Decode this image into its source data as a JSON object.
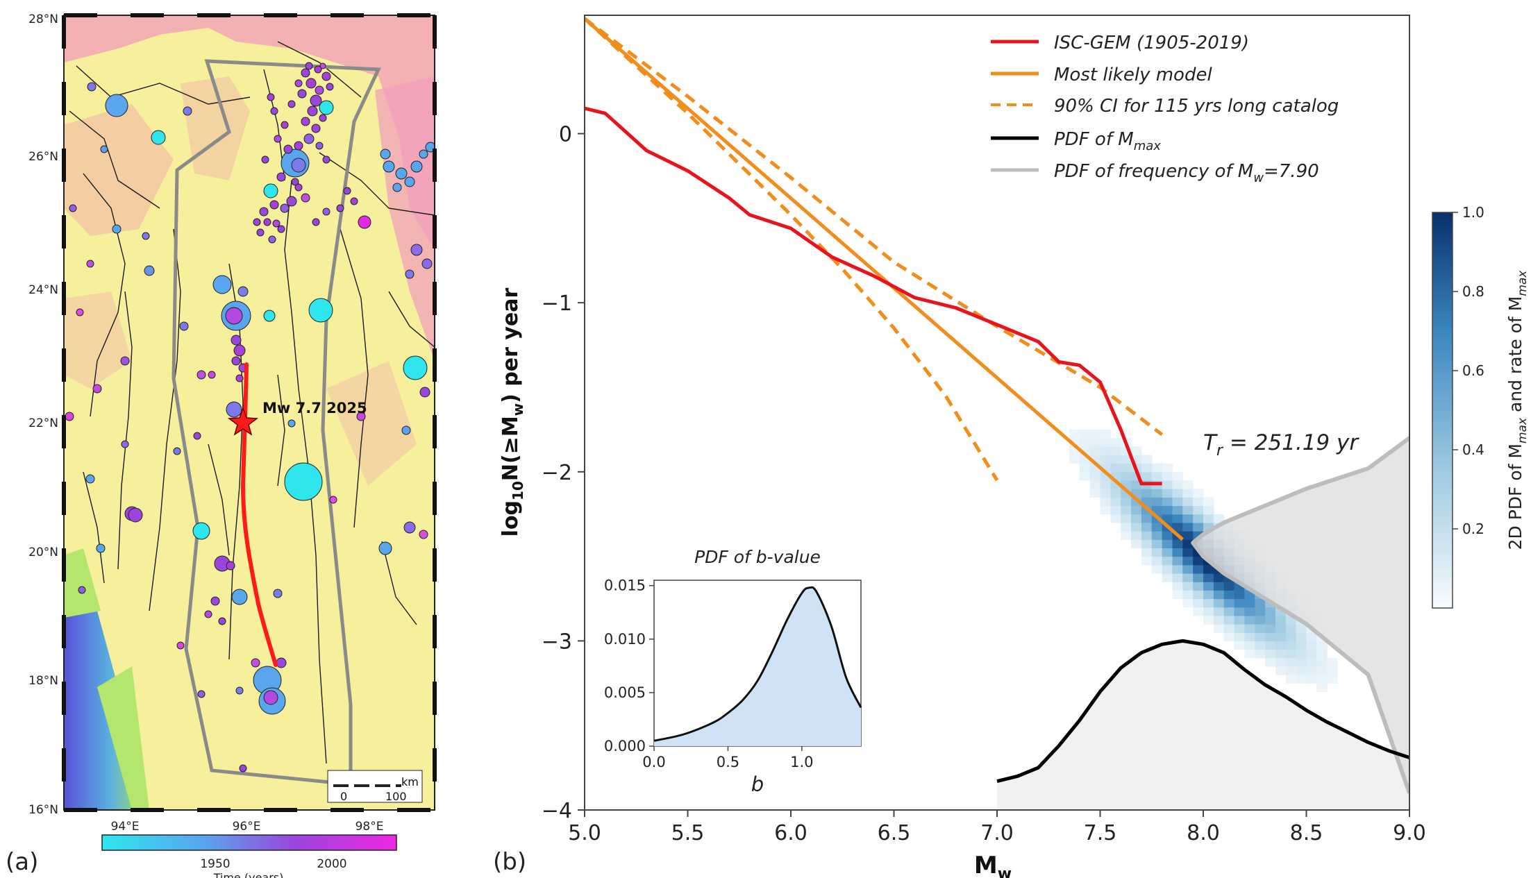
{
  "panel_a": {
    "label": "(a)",
    "lat_ticks": [
      "16°N",
      "18°N",
      "20°N",
      "22°N",
      "24°N",
      "26°N",
      "28°N"
    ],
    "lon_ticks": [
      "94°E",
      "96°E",
      "98°E"
    ],
    "epicenter_label": "Mw 7.7 2025",
    "scale_unit": "km",
    "scale_ticks": [
      "0",
      "100"
    ],
    "colorbar_ticks": [
      "1950",
      "2000"
    ],
    "colorbar_label": "Time (years)",
    "colors": {
      "land": "#f6ef9c",
      "sea": "#5a6ad6",
      "old_event": "#2fe6ee",
      "new_event": "#e02ce0",
      "rupture": "#ff1a1a",
      "zone": "#8a8a8a"
    }
  },
  "panel_b": {
    "label": "(b)",
    "inset_title": "PDF of b-value",
    "inset_xlabel": "b",
    "annotation": "T",
    "annotation_sub": "r",
    "annotation_value": " = 251.19 yr",
    "colorbar_label_parts": [
      "2D PDF of M",
      "max",
      " and rate of M",
      "max"
    ],
    "legend_parts": [
      [
        "ISC-GEM (1905-2019)"
      ],
      [
        "Most likely model"
      ],
      [
        "90% CI for 115 yrs long catalog"
      ],
      [
        "PDF of M",
        "max"
      ],
      [
        "PDF of frequency of M",
        "w",
        "=7.90"
      ]
    ]
  },
  "chart_data": [
    {
      "type": "line",
      "title": "",
      "xlabel": "Mw",
      "ylabel": "log10N(≥Mw) per year",
      "xlim": [
        5.0,
        9.0
      ],
      "ylim": [
        -4,
        0.7
      ],
      "xticks": [
        "5.0",
        "5.5",
        "6.0",
        "6.5",
        "7.0",
        "7.5",
        "8.0",
        "8.5",
        "9.0"
      ],
      "yticks": [
        "0",
        "−1",
        "−2",
        "−3",
        "−4"
      ],
      "colorbar": {
        "label": "2D PDF of Mmax and rate of Mmax",
        "range": [
          0,
          1
        ],
        "ticks": [
          "0.2",
          "0.4",
          "0.6",
          "0.8",
          "1.0"
        ]
      },
      "series": [
        {
          "name": "ISC-GEM (1905-2019)",
          "color": "#e8141c",
          "style": "solid",
          "x": [
            5.0,
            5.1,
            5.3,
            5.5,
            5.7,
            5.8,
            6.0,
            6.2,
            6.4,
            6.6,
            6.8,
            7.0,
            7.2,
            7.3,
            7.4,
            7.5,
            7.6,
            7.7,
            7.8
          ],
          "y": [
            0.15,
            0.12,
            -0.1,
            -0.22,
            -0.38,
            -0.48,
            -0.56,
            -0.73,
            -0.84,
            -0.97,
            -1.03,
            -1.13,
            -1.23,
            -1.35,
            -1.37,
            -1.47,
            -1.75,
            -2.07,
            -2.07
          ]
        },
        {
          "name": "Most likely model",
          "color": "#f28c1a",
          "style": "solid",
          "x": [
            5.0,
            7.9
          ],
          "y": [
            0.68,
            -2.4
          ]
        },
        {
          "name": "90% CI for 115 yrs long catalog",
          "color": "#f28c1a",
          "style": "dashed",
          "x": [
            5.0,
            5.5,
            6.0,
            6.5,
            7.0,
            7.5,
            7.8
          ],
          "y": [
            0.68,
            0.22,
            -0.26,
            -0.76,
            -1.14,
            -1.5,
            -1.78
          ]
        },
        {
          "name": "",
          "color": "#f28c1a",
          "style": "dashed",
          "x": [
            5.0,
            5.5,
            6.0,
            6.25,
            6.5,
            6.75,
            7.0
          ],
          "y": [
            0.68,
            0.12,
            -0.48,
            -0.8,
            -1.15,
            -1.55,
            -2.05
          ]
        },
        {
          "name": "PDF of Mmax",
          "color": "#000000",
          "style": "solid",
          "x": [
            7.0,
            7.1,
            7.2,
            7.3,
            7.4,
            7.5,
            7.6,
            7.7,
            7.8,
            7.9,
            8.0,
            8.1,
            8.2,
            8.3,
            8.4,
            8.5,
            8.6,
            8.7,
            8.8,
            8.9,
            9.0
          ],
          "y": [
            -3.83,
            -3.8,
            -3.75,
            -3.62,
            -3.47,
            -3.3,
            -3.16,
            -3.07,
            -3.02,
            -3.0,
            -3.02,
            -3.07,
            -3.17,
            -3.26,
            -3.33,
            -3.41,
            -3.48,
            -3.54,
            -3.6,
            -3.65,
            -3.69
          ]
        },
        {
          "name": "PDF of frequency of Mw=7.90",
          "color": "#bdbdbd",
          "style": "solid",
          "x": [
            9.0,
            8.8,
            8.5,
            8.3,
            8.1,
            8.0,
            7.95,
            8.0,
            8.1,
            8.3,
            8.5,
            8.8,
            9.0
          ],
          "y": [
            -1.8,
            -1.98,
            -2.1,
            -2.2,
            -2.3,
            -2.37,
            -2.42,
            -2.5,
            -2.6,
            -2.75,
            -2.9,
            -3.2,
            -3.9
          ]
        }
      ]
    },
    {
      "type": "area",
      "title": "PDF of b-value",
      "xlabel": "b",
      "ylabel": "",
      "xlim": [
        0.0,
        1.4
      ],
      "ylim": [
        0.0,
        0.0155
      ],
      "xticks": [
        "0.0",
        "0.5",
        "1.0"
      ],
      "yticks": [
        "0.000",
        "0.005",
        "0.010",
        "0.015"
      ],
      "series": [
        {
          "name": "",
          "color": "#000000",
          "fill": "#cfe2f6",
          "x": [
            0.0,
            0.2,
            0.4,
            0.5,
            0.6,
            0.7,
            0.8,
            0.9,
            1.0,
            1.05,
            1.1,
            1.2,
            1.3,
            1.4
          ],
          "y": [
            0.0005,
            0.0011,
            0.0022,
            0.0031,
            0.0043,
            0.0061,
            0.0088,
            0.0118,
            0.0143,
            0.0148,
            0.0144,
            0.0112,
            0.0064,
            0.0036
          ]
        }
      ]
    }
  ]
}
